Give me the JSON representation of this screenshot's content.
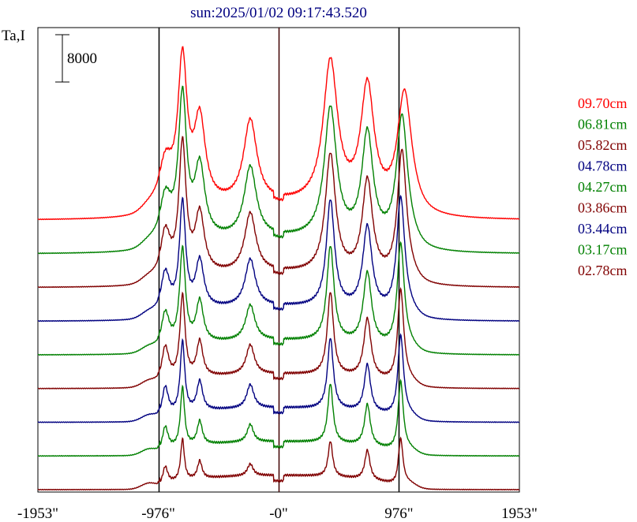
{
  "chart_data": {
    "type": "line",
    "title": "sun:2025/01/02 09:17:43.520",
    "ylabel": "Ta,I",
    "xlabel": "",
    "x_ticks": [
      "-1953\"",
      "-976\"",
      "-0\"",
      "976\"",
      "1953\""
    ],
    "x_tick_values": [
      -1953,
      -976,
      0,
      976,
      1953
    ],
    "xlim": [
      -1953,
      1953
    ],
    "vertical_lines": [
      -976,
      0,
      976
    ],
    "scale_bar": {
      "label": "8000",
      "value": 8000
    },
    "grid": false,
    "legend_position": "right",
    "series": [
      {
        "name": "09.70cm",
        "color": "#ff0000",
        "offset": 9,
        "peaks": [
          [
            -920,
            4,
            70
          ],
          [
            -780,
            12,
            45
          ],
          [
            -640,
            7,
            55
          ],
          [
            -230,
            7,
            65
          ],
          [
            420,
            12,
            70
          ],
          [
            720,
            10,
            65
          ],
          [
            1020,
            10,
            70
          ]
        ]
      },
      {
        "name": "06.81cm",
        "color": "#008000",
        "offset": 8,
        "peaks": [
          [
            -920,
            4,
            60
          ],
          [
            -780,
            12,
            40
          ],
          [
            -640,
            6,
            50
          ],
          [
            -230,
            6,
            60
          ],
          [
            420,
            11,
            60
          ],
          [
            720,
            9,
            55
          ],
          [
            1000,
            11,
            55
          ]
        ]
      },
      {
        "name": "05.82cm",
        "color": "#800000",
        "offset": 7,
        "peaks": [
          [
            -920,
            4,
            50
          ],
          [
            -780,
            11,
            35
          ],
          [
            -640,
            5,
            45
          ],
          [
            -230,
            5,
            55
          ],
          [
            420,
            10,
            50
          ],
          [
            720,
            8,
            50
          ],
          [
            1000,
            11,
            45
          ]
        ]
      },
      {
        "name": "04.78cm",
        "color": "#000080",
        "offset": 6,
        "peaks": [
          [
            -920,
            3.5,
            45
          ],
          [
            -780,
            9,
            30
          ],
          [
            -640,
            4,
            40
          ],
          [
            -230,
            4,
            50
          ],
          [
            420,
            9,
            40
          ],
          [
            720,
            7,
            45
          ],
          [
            990,
            10,
            40
          ]
        ]
      },
      {
        "name": "04.27cm",
        "color": "#008000",
        "offset": 5,
        "peaks": [
          [
            -920,
            3,
            40
          ],
          [
            -780,
            8,
            28
          ],
          [
            -640,
            3.5,
            35
          ],
          [
            -230,
            3,
            45
          ],
          [
            420,
            8,
            35
          ],
          [
            720,
            6,
            40
          ],
          [
            990,
            9,
            35
          ]
        ]
      },
      {
        "name": "03.86cm",
        "color": "#800000",
        "offset": 4,
        "peaks": [
          [
            -920,
            3,
            35
          ],
          [
            -780,
            7,
            25
          ],
          [
            -640,
            3,
            30
          ],
          [
            -230,
            2.5,
            40
          ],
          [
            420,
            7,
            30
          ],
          [
            720,
            5,
            35
          ],
          [
            990,
            8,
            30
          ]
        ]
      },
      {
        "name": "03.44cm",
        "color": "#000080",
        "offset": 3,
        "peaks": [
          [
            -920,
            2.5,
            30
          ],
          [
            -780,
            6,
            22
          ],
          [
            -640,
            2.5,
            28
          ],
          [
            -230,
            2,
            35
          ],
          [
            420,
            6,
            28
          ],
          [
            720,
            4,
            30
          ],
          [
            990,
            7,
            28
          ]
        ]
      },
      {
        "name": "03.17cm",
        "color": "#008000",
        "offset": 2,
        "peaks": [
          [
            -920,
            2,
            28
          ],
          [
            -780,
            5,
            20
          ],
          [
            -640,
            2,
            25
          ],
          [
            -230,
            1.5,
            30
          ],
          [
            420,
            5,
            25
          ],
          [
            720,
            3.5,
            28
          ],
          [
            990,
            6,
            25
          ]
        ]
      },
      {
        "name": "02.78cm",
        "color": "#800000",
        "offset": 1,
        "peaks": [
          [
            -920,
            1.5,
            25
          ],
          [
            -780,
            3.5,
            18
          ],
          [
            -640,
            1.5,
            22
          ],
          [
            -230,
            1,
            28
          ],
          [
            420,
            3,
            22
          ],
          [
            720,
            2.5,
            25
          ],
          [
            990,
            4,
            22
          ]
        ]
      }
    ]
  }
}
